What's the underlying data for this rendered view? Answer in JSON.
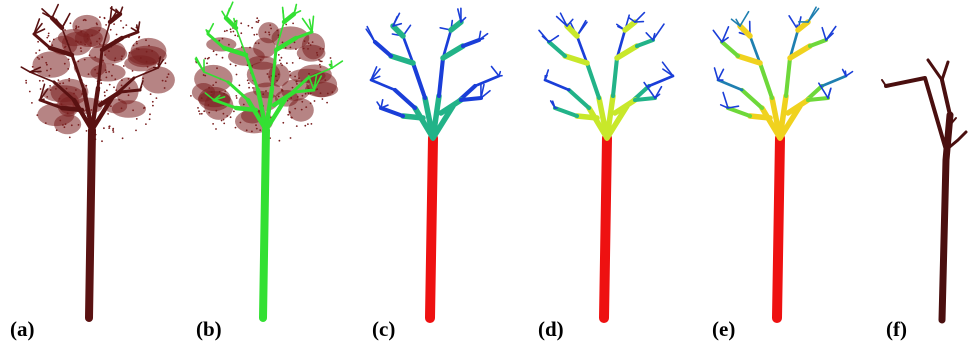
{
  "figure": {
    "panels": [
      {
        "label": "(a)",
        "render": "point-cloud",
        "colors": {
          "leaf": "#7a1f1f",
          "wood": "#5a1212"
        }
      },
      {
        "label": "(b)",
        "render": "point-cloud-segmented",
        "colors": {
          "leaf": "#7a1f1f",
          "wood": "#33e033"
        }
      },
      {
        "label": "(c)",
        "render": "cylinder-model-colormap",
        "colors": {
          "trunk": "#ee1111",
          "branch": "#1a3ed8"
        }
      },
      {
        "label": "(d)",
        "render": "cylinder-model-colormap",
        "colors": {
          "trunk": "#ee1111",
          "branch": "#1a3ed8"
        }
      },
      {
        "label": "(e)",
        "render": "cylinder-model-colormap",
        "colors": {
          "trunk": "#ee1111",
          "branch": "#1a3ed8"
        }
      },
      {
        "label": "(f)",
        "render": "skeleton",
        "colors": {
          "wood": "#4a0f0f"
        }
      }
    ],
    "colormap": [
      "#1a3ed8",
      "#1f7fb0",
      "#22b388",
      "#6ed83a",
      "#c8e82a",
      "#f0d21e",
      "#ee1111"
    ]
  }
}
